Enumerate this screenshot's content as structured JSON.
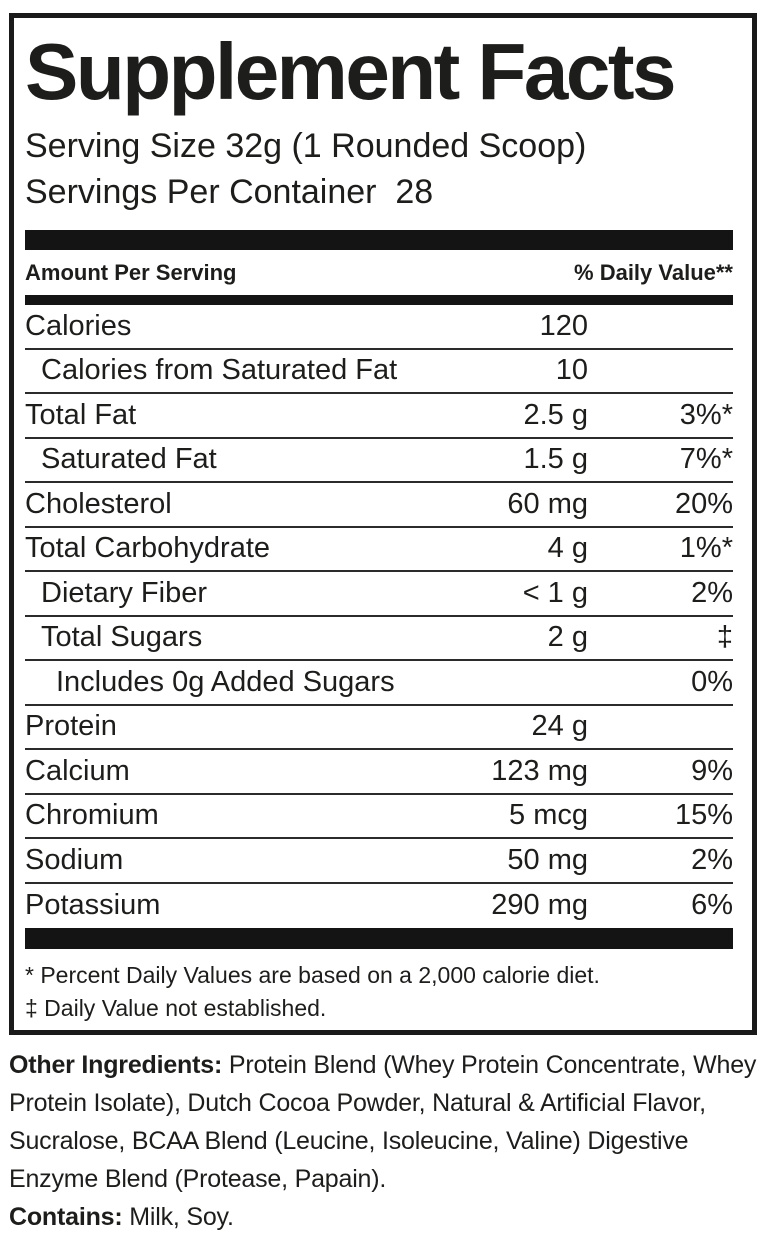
{
  "label": {
    "title": "Supplement Facts",
    "serving_size": "Serving Size 32g (1 Rounded Scoop)",
    "servings_per_container": "Servings Per Container  28",
    "header": {
      "left": "Amount Per Serving",
      "right": "% Daily Value**"
    },
    "rows": [
      {
        "name": "Calories",
        "amount": "120",
        "dv": "",
        "indent": 0
      },
      {
        "name": "Calories from Saturated Fat",
        "amount": "10",
        "dv": "",
        "indent": 1
      },
      {
        "name": "Total Fat",
        "amount": "2.5 g",
        "dv": "3%*",
        "indent": 0
      },
      {
        "name": "Saturated Fat",
        "amount": "1.5 g",
        "dv": "7%*",
        "indent": 1
      },
      {
        "name": "Cholesterol",
        "amount": "60 mg",
        "dv": "20%",
        "indent": 0
      },
      {
        "name": "Total Carbohydrate",
        "amount": "4 g",
        "dv": "1%*",
        "indent": 0
      },
      {
        "name": "Dietary Fiber",
        "amount": "< 1 g",
        "dv": "2%",
        "indent": 1
      },
      {
        "name": "Total Sugars",
        "amount": "2 g",
        "dv": "‡",
        "indent": 1
      },
      {
        "name": "Includes 0g Added Sugars",
        "amount": "",
        "dv": "0%",
        "indent": 2
      },
      {
        "name": "Protein",
        "amount": "24 g",
        "dv": "",
        "indent": 0
      },
      {
        "name": "Calcium",
        "amount": "123 mg",
        "dv": "9%",
        "indent": 0
      },
      {
        "name": "Chromium",
        "amount": "5 mcg",
        "dv": "15%",
        "indent": 0
      },
      {
        "name": "Sodium",
        "amount": "50 mg",
        "dv": "2%",
        "indent": 0
      },
      {
        "name": "Potassium",
        "amount": "290 mg",
        "dv": "6%",
        "indent": 0
      }
    ],
    "footnotes": [
      "* Percent Daily Values are based on a 2,000 calorie diet.",
      "‡ Daily Value not established."
    ]
  },
  "other_ingredients": {
    "label": "Other Ingredients:",
    "text": " Protein Blend (Whey Protein Concentrate, Whey Protein Isolate), Dutch Cocoa Powder, Natural & Artificial Flavor, Sucralose, BCAA Blend (Leucine, Isoleucine, Valine) Digestive Enzyme Blend (Protease, Papain)."
  },
  "contains": {
    "label": "Contains:",
    "text": " Milk, Soy."
  },
  "colors": {
    "text": "#1d1d1b",
    "bar": "#141414",
    "background": "#ffffff"
  }
}
